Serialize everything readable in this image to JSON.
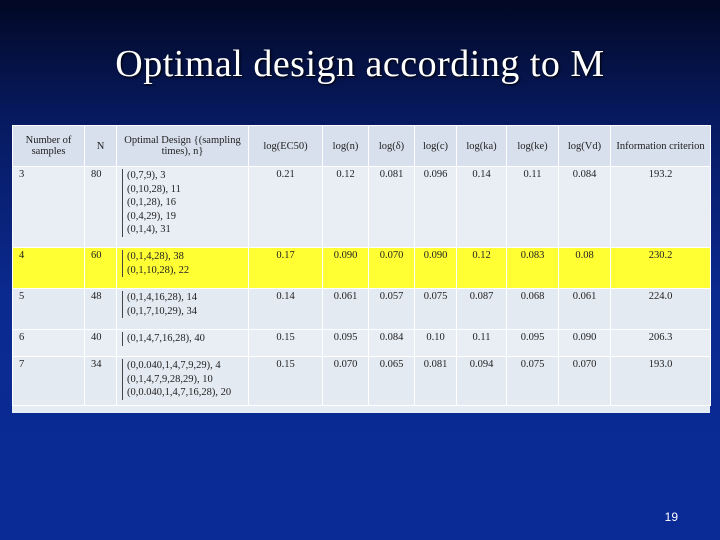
{
  "title": "Optimal design according to M",
  "page_number": "19",
  "table": {
    "headers": [
      "Number of samples",
      "N",
      "Optimal Design {(sampling times), n}",
      "log(EC50)",
      "log(n)",
      "log(δ)",
      "log(c)",
      "log(ka)",
      "log(ke)",
      "log(Vd)",
      "Information criterion"
    ],
    "rows": [
      {
        "samples": "3",
        "N": "80",
        "design": [
          "(0,7,9), 3",
          "(0,10,28), 11",
          "(0,1,28), 16",
          "(0,4,29), 19",
          "(0,1,4), 31"
        ],
        "vals": [
          "0.21",
          "0.12",
          "0.081",
          "0.096",
          "0.14",
          "0.11",
          "0.084",
          "193.2"
        ]
      },
      {
        "samples": "4",
        "N": "60",
        "design": [
          "(0,1,4,28), 38",
          "(0,1,10,28), 22"
        ],
        "vals": [
          "0.17",
          "0.090",
          "0.070",
          "0.090",
          "0.12",
          "0.083",
          "0.08",
          "230.2"
        ]
      },
      {
        "samples": "5",
        "N": "48",
        "design": [
          "(0,1,4,16,28), 14",
          "(0,1,7,10,29), 34"
        ],
        "vals": [
          "0.14",
          "0.061",
          "0.057",
          "0.075",
          "0.087",
          "0.068",
          "0.061",
          "224.0"
        ]
      },
      {
        "samples": "6",
        "N": "40",
        "design": [
          "(0,1,4,7,16,28), 40"
        ],
        "vals": [
          "0.15",
          "0.095",
          "0.084",
          "0.10",
          "0.11",
          "0.095",
          "0.090",
          "206.3"
        ]
      },
      {
        "samples": "7",
        "N": "34",
        "design": [
          "(0,0.040,1,4,7,9,29), 4",
          "(0,1,4,7,9,28,29), 10",
          "(0,0.040,1,4,7,16,28), 20"
        ],
        "vals": [
          "0.15",
          "0.070",
          "0.065",
          "0.081",
          "0.094",
          "0.075",
          "0.070",
          "193.0"
        ]
      }
    ]
  }
}
